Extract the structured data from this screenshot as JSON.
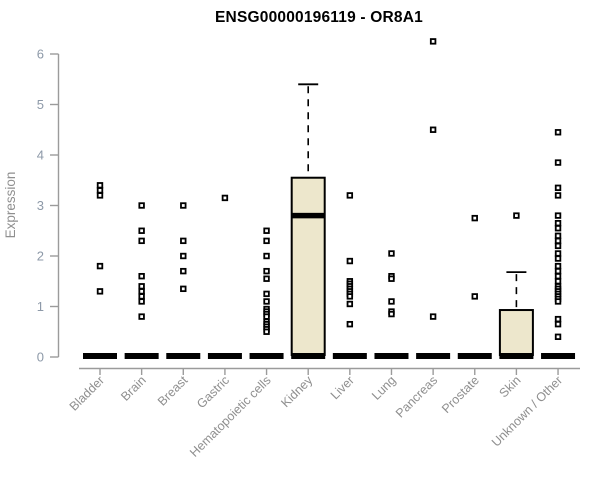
{
  "chart_data": {
    "type": "box",
    "title": "ENSG00000196119 - OR8A1",
    "ylabel": "Expression",
    "ylim": [
      0,
      6
    ],
    "yticks": [
      0,
      1,
      2,
      3,
      4,
      5,
      6
    ],
    "grid": false,
    "legend": "none",
    "colors": {
      "box_fill": "#EDE7CC",
      "box_stroke": "#000000",
      "point": "#000000",
      "axis": "#9b9b9b",
      "tick_label": "#8d99a8",
      "text": "#8f8f8f",
      "title": "#000000"
    },
    "series": [
      {
        "category": "Bladder",
        "box": {
          "q1": 0,
          "median": 0,
          "q3": 0,
          "whisker_low": 0,
          "whisker_high": 0
        },
        "outliers": [
          3.4,
          3.3,
          3.2,
          1.8,
          1.3
        ]
      },
      {
        "category": "Brain",
        "box": {
          "q1": 0,
          "median": 0,
          "q3": 0,
          "whisker_low": 0,
          "whisker_high": 0
        },
        "outliers": [
          3.0,
          2.5,
          2.3,
          1.6,
          1.4,
          1.3,
          1.2,
          1.1,
          0.8
        ]
      },
      {
        "category": "Breast",
        "box": {
          "q1": 0,
          "median": 0,
          "q3": 0,
          "whisker_low": 0,
          "whisker_high": 0
        },
        "outliers": [
          3.0,
          2.3,
          2.0,
          1.7,
          1.35
        ]
      },
      {
        "category": "Gastric",
        "box": {
          "q1": 0,
          "median": 0,
          "q3": 0,
          "whisker_low": 0,
          "whisker_high": 0
        },
        "outliers": [
          3.15
        ]
      },
      {
        "category": "Hematopoietic cells",
        "box": {
          "q1": 0,
          "median": 0,
          "q3": 0,
          "whisker_low": 0,
          "whisker_high": 0
        },
        "outliers": [
          2.5,
          2.3,
          2.0,
          1.7,
          1.55,
          1.25,
          1.1,
          0.95,
          0.9,
          0.85,
          0.8,
          0.7,
          0.65,
          0.6,
          0.55,
          0.5
        ]
      },
      {
        "category": "Kidney",
        "box": {
          "q1": 0,
          "median": 2.8,
          "q3": 3.55,
          "whisker_low": 0,
          "whisker_high": 5.4
        },
        "outliers": []
      },
      {
        "category": "Liver",
        "box": {
          "q1": 0,
          "median": 0,
          "q3": 0,
          "whisker_low": 0,
          "whisker_high": 0
        },
        "outliers": [
          3.2,
          1.9,
          1.5,
          1.45,
          1.4,
          1.35,
          1.3,
          1.25,
          1.2,
          1.05,
          0.65
        ]
      },
      {
        "category": "Lung",
        "box": {
          "q1": 0,
          "median": 0,
          "q3": 0,
          "whisker_low": 0,
          "whisker_high": 0
        },
        "outliers": [
          2.05,
          1.6,
          1.55,
          1.1,
          0.9,
          0.85
        ]
      },
      {
        "category": "Pancreas",
        "box": {
          "q1": 0,
          "median": 0,
          "q3": 0,
          "whisker_low": 0,
          "whisker_high": 0
        },
        "outliers": [
          6.25,
          4.5,
          0.8
        ]
      },
      {
        "category": "Prostate",
        "box": {
          "q1": 0,
          "median": 0,
          "q3": 0,
          "whisker_low": 0,
          "whisker_high": 0
        },
        "outliers": [
          2.75,
          1.2
        ]
      },
      {
        "category": "Skin",
        "box": {
          "q1": 0,
          "median": 0,
          "q3": 0.93,
          "whisker_low": 0,
          "whisker_high": 1.68
        },
        "outliers": [
          2.8
        ]
      },
      {
        "category": "Unknown / Other",
        "box": {
          "q1": 0,
          "median": 0,
          "q3": 0,
          "whisker_low": 0,
          "whisker_high": 0
        },
        "outliers": [
          4.45,
          3.85,
          3.35,
          3.2,
          2.8,
          2.65,
          2.55,
          2.4,
          2.3,
          2.2,
          2.05,
          1.95,
          1.8,
          1.7,
          1.6,
          1.5,
          1.4,
          1.35,
          1.3,
          1.25,
          1.2,
          1.15,
          1.1,
          0.75,
          0.65,
          0.4
        ]
      }
    ]
  }
}
